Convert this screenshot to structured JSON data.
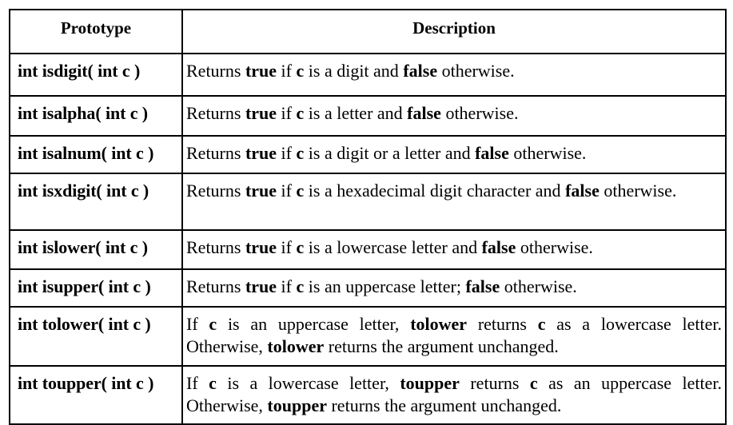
{
  "header": {
    "prototype": "Prototype",
    "description": "Description"
  },
  "rows": [
    {
      "prototype": "int isdigit( int c )",
      "description": [
        {
          "t": "Returns "
        },
        {
          "b": "true"
        },
        {
          "t": " if "
        },
        {
          "b": "c"
        },
        {
          "t": " is a digit and "
        },
        {
          "b": "false"
        },
        {
          "t": " otherwise."
        }
      ]
    },
    {
      "prototype": "int isalpha( int c )",
      "description": [
        {
          "t": "Returns "
        },
        {
          "b": "true"
        },
        {
          "t": " if "
        },
        {
          "b": "c"
        },
        {
          "t": " is a letter and "
        },
        {
          "b": "false"
        },
        {
          "t": " otherwise."
        }
      ]
    },
    {
      "prototype": "int isalnum( int c )",
      "description": [
        {
          "t": "Returns "
        },
        {
          "b": "true"
        },
        {
          "t": " if "
        },
        {
          "b": "c"
        },
        {
          "t": " is a digit or a letter and "
        },
        {
          "b": "false"
        },
        {
          "t": " otherwise."
        }
      ]
    },
    {
      "prototype": "int isxdigit( int c )",
      "description": [
        {
          "t": "Returns "
        },
        {
          "b": "true"
        },
        {
          "t": " if "
        },
        {
          "b": "c"
        },
        {
          "t": " is a hexadecimal digit character and "
        },
        {
          "b": "false"
        },
        {
          "t": " otherwise."
        }
      ]
    },
    {
      "prototype": "int islower( int c )",
      "description": [
        {
          "t": "Returns "
        },
        {
          "b": "true"
        },
        {
          "t": " if "
        },
        {
          "b": "c"
        },
        {
          "t": " is a lowercase letter and "
        },
        {
          "b": "false"
        },
        {
          "t": " otherwise."
        }
      ]
    },
    {
      "prototype": "int isupper( int c )",
      "description": [
        {
          "t": "Returns "
        },
        {
          "b": "true"
        },
        {
          "t": " if "
        },
        {
          "b": "c"
        },
        {
          "t": " is an uppercase letter; "
        },
        {
          "b": "false"
        },
        {
          "t": " otherwise."
        }
      ]
    },
    {
      "prototype": "int tolower( int c )",
      "description": [
        {
          "t": "If "
        },
        {
          "b": "c"
        },
        {
          "t": " is an uppercase letter, "
        },
        {
          "b": "tolower"
        },
        {
          "t": " returns "
        },
        {
          "b": "c"
        },
        {
          "t": " as a lowercase letter. Otherwise, "
        },
        {
          "b": "tolower"
        },
        {
          "t": " returns the argument unchanged."
        }
      ]
    },
    {
      "prototype": "int toupper( int c )",
      "description": [
        {
          "t": "If "
        },
        {
          "b": "c"
        },
        {
          "t": " is a lowercase letter, "
        },
        {
          "b": "toupper"
        },
        {
          "t": " returns "
        },
        {
          "b": "c"
        },
        {
          "t": " as an uppercase letter. Otherwise, "
        },
        {
          "b": "toupper"
        },
        {
          "t": " returns the argument unchanged."
        }
      ]
    }
  ]
}
